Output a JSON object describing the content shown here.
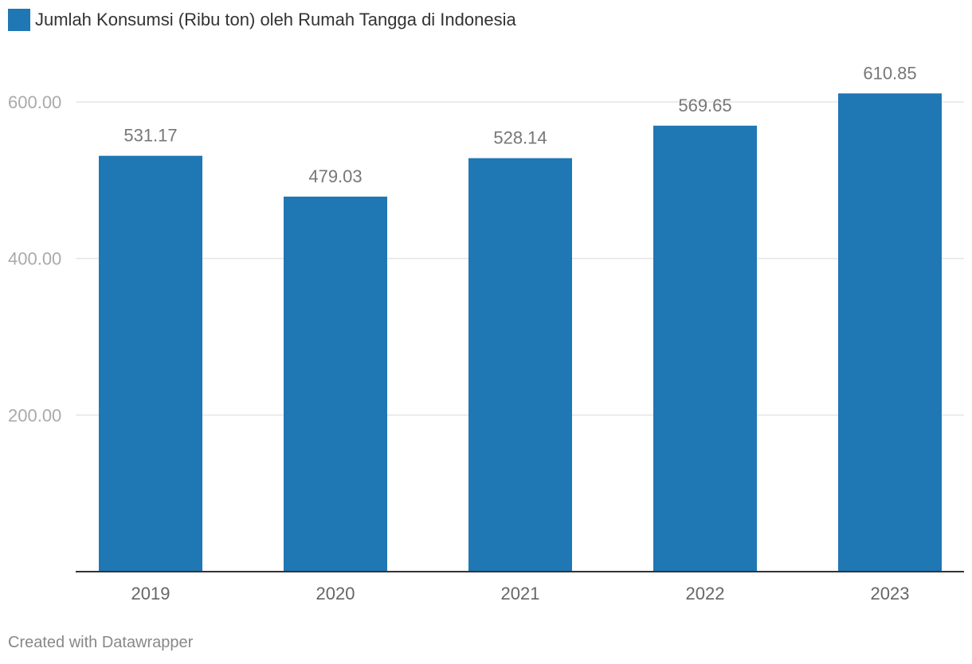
{
  "colors": {
    "bar": "#1f77b4",
    "grid": "#e5e5e5",
    "axis": "#333333",
    "tick_label": "#aaaaaa",
    "value_label": "#777777",
    "category_label": "#666666"
  },
  "legend": {
    "label": "Jumlah Konsumsi (Ribu ton) oleh Rumah Tangga di Indonesia"
  },
  "footer": {
    "credit": "Created with Datawrapper"
  },
  "chart_data": {
    "type": "bar",
    "categories": [
      "2019",
      "2020",
      "2021",
      "2022",
      "2023"
    ],
    "series": [
      {
        "name": "Jumlah Konsumsi (Ribu ton) oleh Rumah Tangga di Indonesia",
        "values": [
          531.17,
          479.03,
          528.14,
          569.65,
          610.85
        ]
      }
    ],
    "value_labels": [
      "531.17",
      "479.03",
      "528.14",
      "569.65",
      "610.85"
    ],
    "yticks": [
      200,
      400,
      600
    ],
    "ytick_labels": [
      "200.00",
      "400.00",
      "600.00"
    ],
    "ylim": [
      0,
      600
    ],
    "grid": true,
    "legend_position": "top-left"
  }
}
